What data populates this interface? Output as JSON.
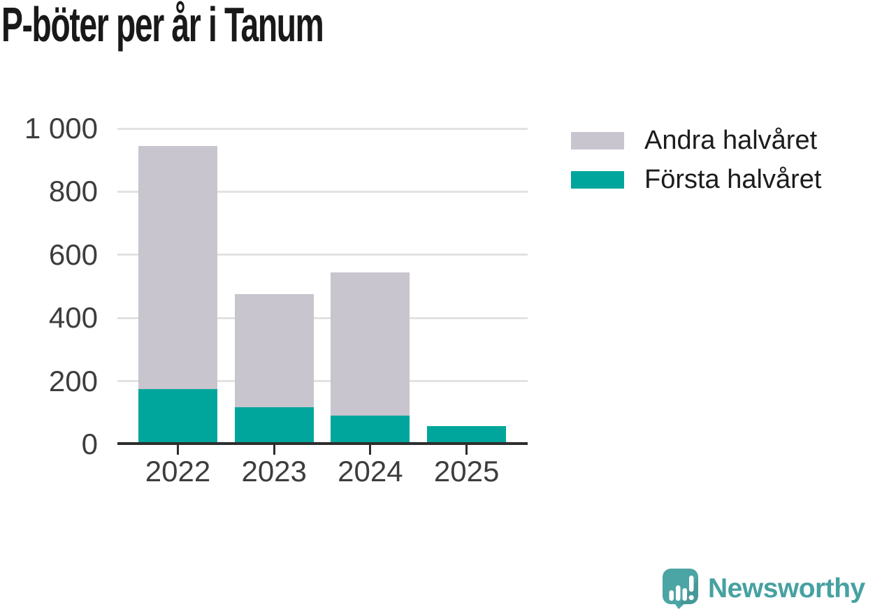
{
  "title": "P-böter per år i Tanum",
  "chart_data": {
    "type": "bar",
    "stacked": true,
    "title": "P-böter per år i Tanum",
    "categories": [
      "2022",
      "2023",
      "2024",
      "2025"
    ],
    "series": [
      {
        "name": "Första halvåret",
        "color": "#00a69c",
        "values": [
          175,
          118,
          90,
          58
        ]
      },
      {
        "name": "Andra halvåret",
        "color": "#c8c5ce",
        "values": [
          770,
          358,
          455,
          0
        ]
      }
    ],
    "xlabel": "",
    "ylabel": "",
    "ylim": [
      0,
      1000
    ],
    "yticks": [
      0,
      200,
      400,
      600,
      800,
      1000
    ],
    "ytick_labels": [
      "0",
      "200",
      "400",
      "600",
      "800",
      "1 000"
    ],
    "grid": true,
    "legend_position": "right-of-plot",
    "legend": [
      {
        "label": "Andra halvåret",
        "color": "#c8c5ce"
      },
      {
        "label": "Första halvåret",
        "color": "#00a69c"
      }
    ]
  },
  "branding": {
    "logo_text": "Newsworthy",
    "logo_color": "#47a1a1"
  },
  "colors": {
    "background": "#ffffff",
    "title": "#191919",
    "axis_labels": "#3d3d3d",
    "axis_line": "#2d2d2d",
    "gridline": "#e2e2e2",
    "first_half": "#00a69c",
    "second_half": "#c8c5ce"
  }
}
